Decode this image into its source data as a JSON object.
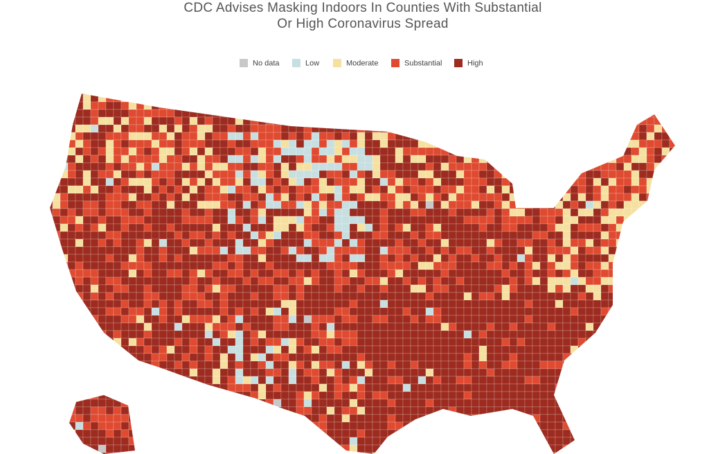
{
  "header": {
    "title_lines": [
      "CDC Advises Masking Indoors In Counties With Substantial",
      "Or High Coronavirus  Spread"
    ]
  },
  "legend": [
    {
      "label": "No data",
      "color": "#c8c8c8"
    },
    {
      "label": "Low",
      "color": "#c7dfe1"
    },
    {
      "label": "Moderate",
      "color": "#f6e0a0"
    },
    {
      "label": "Substantial",
      "color": "#df4a30"
    },
    {
      "label": "High",
      "color": "#9d2b1f"
    }
  ]
}
